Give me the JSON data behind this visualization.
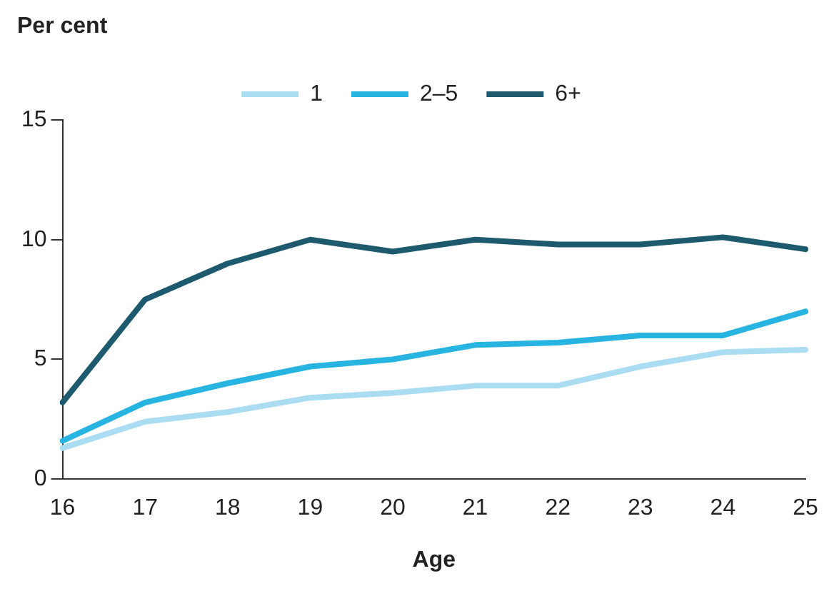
{
  "chart_data": {
    "type": "line",
    "ylabel": "Per cent",
    "xlabel": "Age",
    "categories": [
      "16",
      "17",
      "18",
      "19",
      "20",
      "21",
      "22",
      "23",
      "24",
      "25"
    ],
    "series": [
      {
        "name": "1",
        "color": "#aadcf2",
        "values": [
          1.3,
          2.4,
          2.8,
          3.4,
          3.6,
          3.9,
          3.9,
          4.7,
          5.3,
          5.4
        ]
      },
      {
        "name": "2–5",
        "color": "#27b4e0",
        "values": [
          1.6,
          3.2,
          4.0,
          4.7,
          5.0,
          5.6,
          5.7,
          6.0,
          6.0,
          7.0
        ]
      },
      {
        "name": "6+",
        "color": "#1d5a6e",
        "values": [
          3.2,
          7.5,
          9.0,
          10.0,
          9.5,
          10.0,
          9.8,
          9.8,
          10.1,
          9.6
        ]
      }
    ],
    "ylim": [
      0,
      15
    ],
    "yticks": [
      0,
      5,
      10,
      15
    ],
    "grid": false,
    "legend": "top",
    "marker": "none",
    "line_style": "solid"
  }
}
